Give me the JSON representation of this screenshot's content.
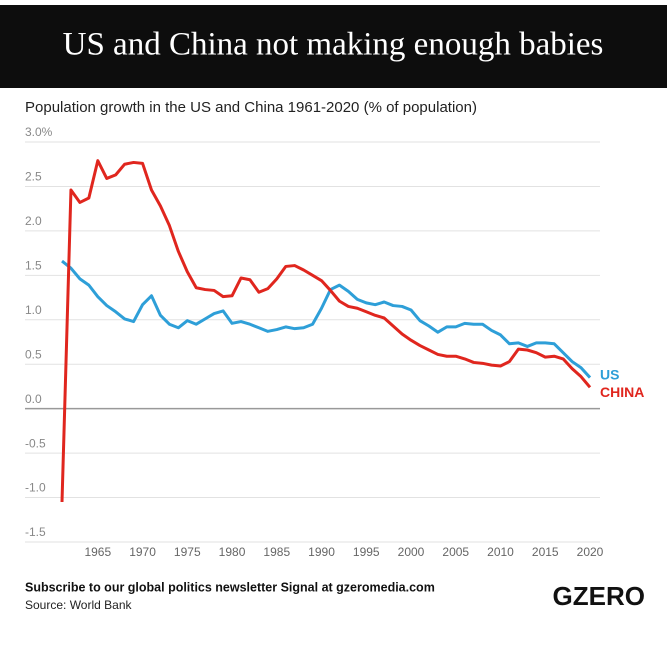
{
  "chart_data": {
    "type": "line",
    "title": "US and China not making enough babies",
    "subtitle": "Population growth in the US and China 1961-2020 (% of population)",
    "x": [
      1961,
      1962,
      1963,
      1964,
      1965,
      1966,
      1967,
      1968,
      1969,
      1970,
      1971,
      1972,
      1973,
      1974,
      1975,
      1976,
      1977,
      1978,
      1979,
      1980,
      1981,
      1982,
      1983,
      1984,
      1985,
      1986,
      1987,
      1988,
      1989,
      1990,
      1991,
      1992,
      1993,
      1994,
      1995,
      1996,
      1997,
      1998,
      1999,
      2000,
      2001,
      2002,
      2003,
      2004,
      2005,
      2006,
      2007,
      2008,
      2009,
      2010,
      2011,
      2012,
      2013,
      2014,
      2015,
      2016,
      2017,
      2018,
      2019,
      2020
    ],
    "series": [
      {
        "name": "US",
        "color": "#2e9fd8",
        "values": [
          1.66,
          1.58,
          1.46,
          1.39,
          1.26,
          1.16,
          1.09,
          1.01,
          0.98,
          1.17,
          1.27,
          1.05,
          0.95,
          0.91,
          0.99,
          0.95,
          1.01,
          1.07,
          1.1,
          0.96,
          0.98,
          0.95,
          0.91,
          0.87,
          0.89,
          0.92,
          0.9,
          0.91,
          0.95,
          1.13,
          1.34,
          1.39,
          1.32,
          1.23,
          1.19,
          1.17,
          1.2,
          1.16,
          1.15,
          1.11,
          0.99,
          0.93,
          0.86,
          0.92,
          0.92,
          0.96,
          0.95,
          0.95,
          0.88,
          0.83,
          0.73,
          0.74,
          0.7,
          0.74,
          0.74,
          0.73,
          0.63,
          0.53,
          0.46,
          0.35
        ]
      },
      {
        "name": "CHINA",
        "color": "#e0261e",
        "values": [
          -1.05,
          2.46,
          2.32,
          2.37,
          2.79,
          2.59,
          2.63,
          2.75,
          2.77,
          2.76,
          2.46,
          2.28,
          2.06,
          1.77,
          1.54,
          1.36,
          1.34,
          1.33,
          1.26,
          1.27,
          1.47,
          1.45,
          1.31,
          1.35,
          1.46,
          1.6,
          1.61,
          1.56,
          1.5,
          1.44,
          1.33,
          1.21,
          1.15,
          1.13,
          1.09,
          1.05,
          1.02,
          0.93,
          0.84,
          0.77,
          0.71,
          0.66,
          0.61,
          0.59,
          0.59,
          0.56,
          0.52,
          0.51,
          0.49,
          0.48,
          0.53,
          0.67,
          0.66,
          0.63,
          0.58,
          0.59,
          0.56,
          0.45,
          0.36,
          0.24
        ]
      }
    ],
    "xlim": [
      1961,
      2020
    ],
    "xticks": [
      1965,
      1970,
      1975,
      1980,
      1985,
      1990,
      1995,
      2000,
      2005,
      2010,
      2015,
      2020
    ],
    "ylim": [
      -1.5,
      3.0
    ],
    "yticks": [
      {
        "value": 3.0,
        "label": "3.0%"
      },
      2.5,
      {
        "value": 2,
        "label": "2.0"
      },
      1.5,
      {
        "value": 1,
        "label": "1.0"
      },
      0.5,
      {
        "value": 0,
        "label": "0.0"
      },
      -0.5,
      {
        "value": -1,
        "label": "-1.0"
      },
      -1.5
    ],
    "grid": true,
    "footnote": "Subscribe to our global politics newsletter Signal at gzeromedia.com",
    "source": "Source: World Bank",
    "logo": "GZERO"
  }
}
